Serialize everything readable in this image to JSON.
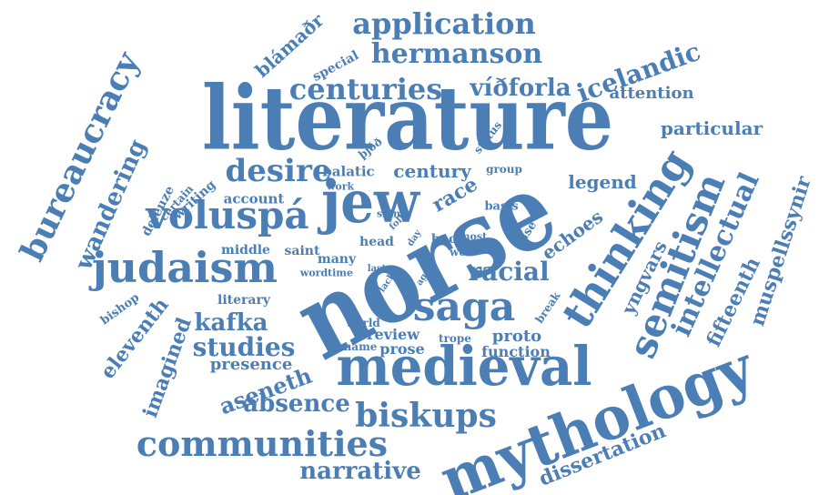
{
  "color": "#4a7eb5",
  "words": [
    "literature",
    "norse",
    "jew",
    "mythology",
    "medieval",
    "saga",
    "thinking",
    "semitism",
    "voluspá",
    "judaism",
    "bureaucracy",
    "desire",
    "centuries",
    "hermanson",
    "application",
    "icelandic",
    "víðforla",
    "biskups",
    "communities",
    "intellectual",
    "racial",
    "wandering",
    "kafka",
    "studies",
    "aseneth",
    "absence",
    "narrative",
    "dissertation",
    "muspellssynir",
    "fifteenth",
    "eleventh",
    "imagined",
    "presence",
    "yngvars",
    "echoes",
    "legend",
    "century",
    "particular",
    "attention",
    "blámaðr",
    "special",
    "certain",
    "deleuze",
    "writing",
    "account",
    "balatic",
    "race",
    "group",
    "status",
    "þjóð",
    "work",
    "skin",
    "basis",
    "book",
    "most",
    "head",
    "wolf",
    "case",
    "day",
    "saint",
    "middle",
    "many",
    "word",
    "time",
    "last",
    "lack",
    "age",
    "folk",
    "bishop",
    "literary",
    "world",
    "trope",
    "review",
    "prose",
    "proto",
    "break",
    "name",
    "function"
  ]
}
